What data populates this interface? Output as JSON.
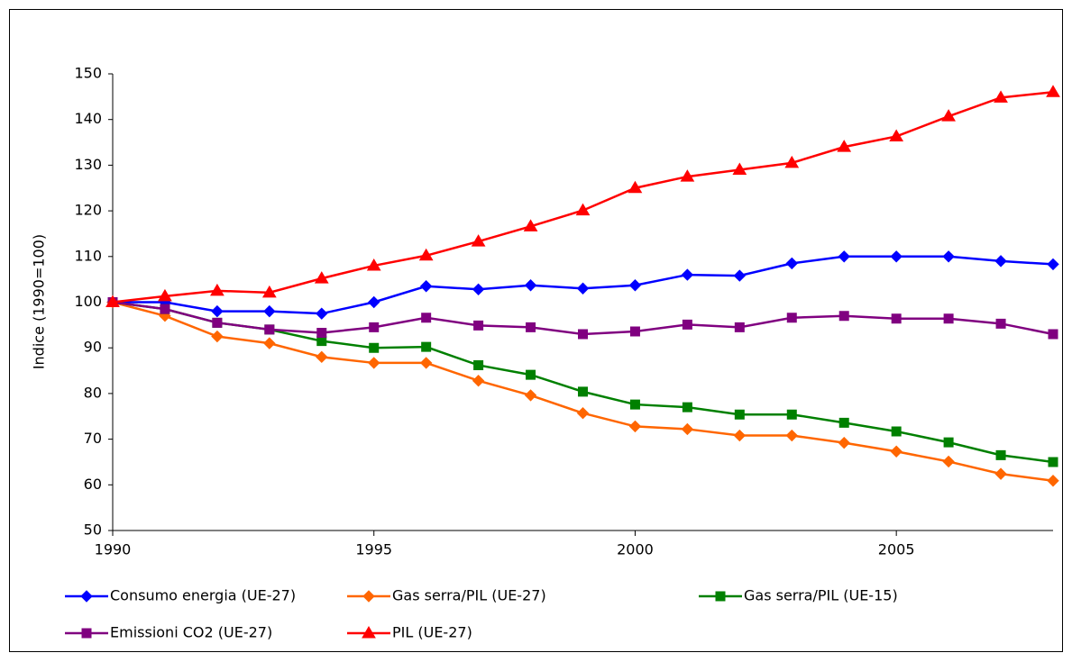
{
  "chart_data": {
    "type": "line",
    "y_label": "Indice (1990=100)",
    "x": [
      1990,
      1991,
      1992,
      1993,
      1994,
      1995,
      1996,
      1997,
      1998,
      1999,
      2000,
      2001,
      2002,
      2003,
      2004,
      2005,
      2006,
      2007,
      2008
    ],
    "xlim": [
      1990,
      2008
    ],
    "xticks": [
      1990,
      1995,
      2000,
      2005
    ],
    "ylim": [
      50,
      150
    ],
    "yticks": [
      50,
      60,
      70,
      80,
      90,
      100,
      110,
      120,
      130,
      140,
      150
    ],
    "grid": false,
    "legend": "bottom",
    "series": [
      {
        "name": "Consumo energia (UE-27)",
        "color": "#0000ff",
        "marker": "diamond",
        "values": [
          100,
          100,
          98,
          98,
          97.5,
          100,
          103.5,
          102.8,
          103.7,
          103,
          103.7,
          106,
          105.8,
          108.5,
          110,
          110,
          110,
          109,
          108.3
        ]
      },
      {
        "name": "Gas serra/PIL (UE-27)",
        "color": "#ff6600",
        "marker": "diamond",
        "values": [
          100,
          97,
          92.5,
          91,
          88,
          86.7,
          86.7,
          82.8,
          79.6,
          75.7,
          72.8,
          72.2,
          70.8,
          70.8,
          69.2,
          67.3,
          65.1,
          62.4,
          60.9
        ]
      },
      {
        "name": "Gas serra/PIL (UE-15)",
        "color": "#008000",
        "marker": "square",
        "values": [
          100,
          98.5,
          95.5,
          94,
          91.5,
          90,
          90.2,
          86.2,
          84.1,
          80.4,
          77.6,
          77,
          75.4,
          75.4,
          73.6,
          71.7,
          69.3,
          66.5,
          65
        ]
      },
      {
        "name": "Emissioni CO2 (UE-27)",
        "color": "#800080",
        "marker": "square",
        "values": [
          100,
          98.5,
          95.5,
          94,
          93.3,
          94.5,
          96.6,
          94.9,
          94.5,
          93,
          93.6,
          95.1,
          94.5,
          96.6,
          97,
          96.4,
          96.4,
          95.3,
          93
        ]
      },
      {
        "name": "PIL (UE-27)",
        "color": "#ff0000",
        "marker": "triangle",
        "values": [
          100,
          101.3,
          102.5,
          102.1,
          105.2,
          108,
          110.2,
          113.3,
          116.6,
          120.1,
          125,
          127.5,
          129,
          130.5,
          134,
          136.3,
          140.7,
          144.8,
          146
        ]
      }
    ]
  }
}
